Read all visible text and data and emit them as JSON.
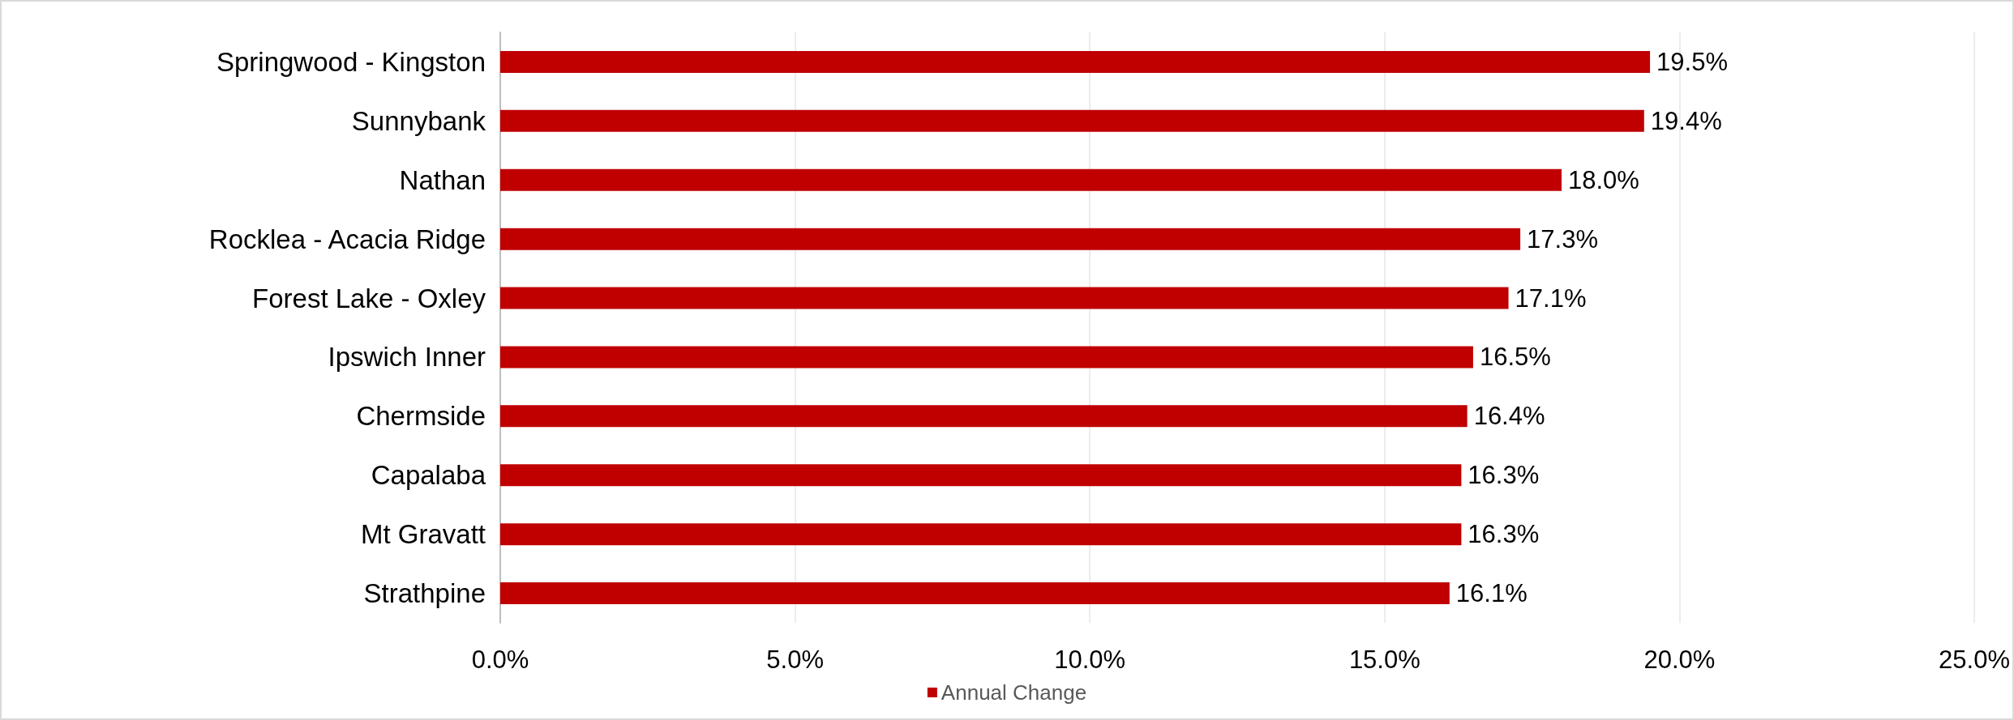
{
  "chart_data": {
    "type": "bar",
    "orientation": "horizontal",
    "categories": [
      "Springwood - Kingston",
      "Sunnybank",
      "Nathan",
      "Rocklea - Acacia Ridge",
      "Forest Lake - Oxley",
      "Ipswich Inner",
      "Chermside",
      "Capalaba",
      "Mt Gravatt",
      "Strathpine"
    ],
    "series": [
      {
        "name": "Annual Change",
        "color": "#c00000",
        "values": [
          19.5,
          19.4,
          18.0,
          17.3,
          17.1,
          16.5,
          16.4,
          16.3,
          16.3,
          16.1
        ],
        "value_labels": [
          "19.5%",
          "19.4%",
          "18.0%",
          "17.3%",
          "17.1%",
          "16.5%",
          "16.4%",
          "16.3%",
          "16.3%",
          "16.1%"
        ]
      }
    ],
    "xlim": [
      0,
      25
    ],
    "xticks": [
      {
        "value": 0,
        "label": "0.0%"
      },
      {
        "value": 5,
        "label": "5.0%"
      },
      {
        "value": 10,
        "label": "10.0%"
      },
      {
        "value": 15,
        "label": "15.0%"
      },
      {
        "value": 20,
        "label": "20.0%"
      },
      {
        "value": 25,
        "label": "25.0%"
      }
    ],
    "grid": "x",
    "legend": "bottom"
  }
}
